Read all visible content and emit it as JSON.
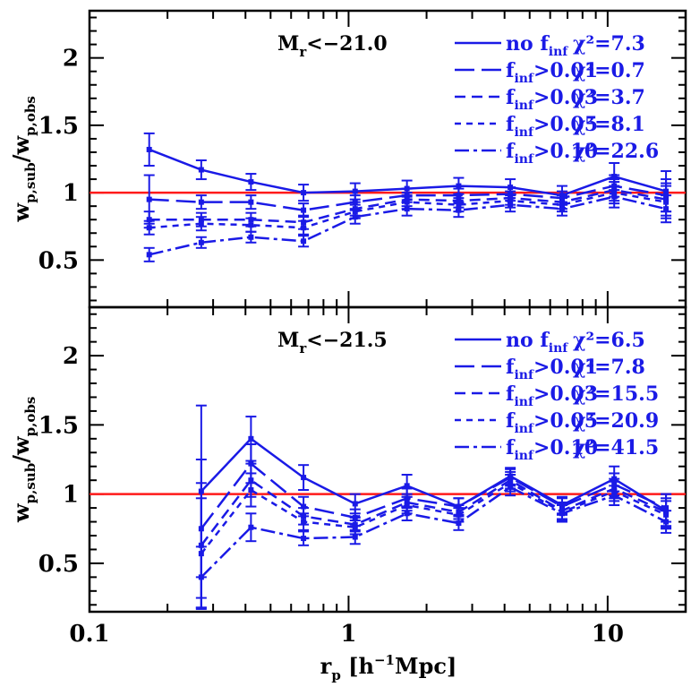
{
  "chart_data": [
    {
      "type": "line",
      "panel_label": "M",
      "panel_label_sub": "r",
      "panel_label_rest": "<−21.0",
      "xlabel": "",
      "ylabel_main": "w",
      "ylabel_sub_num": "p,sub",
      "ylabel_den": "w",
      "ylabel_sub_den": "p,obs",
      "x_scale": "log",
      "xlim": [
        0.1,
        20
      ],
      "ylim": [
        0.15,
        2.35
      ],
      "y_ticks": [
        0.5,
        1,
        1.5,
        2
      ],
      "y_tick_labels": [
        "0.5",
        "1",
        "1.5",
        "2"
      ],
      "reference_line": {
        "y": 1,
        "color": "#ff1a1a"
      },
      "x": [
        0.17,
        0.27,
        0.42,
        0.67,
        1.06,
        1.68,
        2.66,
        4.21,
        6.67,
        10.6,
        16.8
      ],
      "series": [
        {
          "name": "no f_inf",
          "chi2": "χ²=7.3",
          "dash": "solid",
          "values": [
            1.32,
            1.17,
            1.08,
            1.0,
            1.01,
            1.03,
            1.05,
            1.04,
            0.98,
            1.12,
            1.01
          ],
          "err": [
            0.12,
            0.07,
            0.06,
            0.06,
            0.06,
            0.06,
            0.06,
            0.06,
            0.07,
            0.1,
            0.15
          ]
        },
        {
          "name": "f_inf>0.01",
          "chi2": "χ²=0.7",
          "dash": "long",
          "values": [
            0.95,
            0.93,
            0.93,
            0.87,
            0.93,
            0.98,
            0.98,
            0.99,
            0.96,
            1.05,
            0.98
          ],
          "err": [
            0.18,
            0.05,
            0.05,
            0.05,
            0.05,
            0.05,
            0.05,
            0.05,
            0.05,
            0.08,
            0.12
          ]
        },
        {
          "name": "f_inf>0.03",
          "chi2": "χ²=3.7",
          "dash": "medium",
          "values": [
            0.8,
            0.8,
            0.8,
            0.78,
            0.88,
            0.95,
            0.94,
            0.96,
            0.93,
            1.02,
            0.95
          ],
          "err": [
            0.06,
            0.05,
            0.05,
            0.05,
            0.05,
            0.05,
            0.05,
            0.05,
            0.05,
            0.08,
            0.12
          ]
        },
        {
          "name": "f_inf>0.05",
          "chi2": "χ²=8.1",
          "dash": "short",
          "values": [
            0.74,
            0.77,
            0.76,
            0.74,
            0.86,
            0.93,
            0.91,
            0.94,
            0.91,
            1.0,
            0.93
          ],
          "err": [
            0.05,
            0.05,
            0.05,
            0.05,
            0.05,
            0.05,
            0.05,
            0.05,
            0.05,
            0.08,
            0.12
          ]
        },
        {
          "name": "f_inf>0.10",
          "chi2": "χ²=22.6",
          "dash": "dotdash",
          "values": [
            0.54,
            0.63,
            0.67,
            0.64,
            0.82,
            0.88,
            0.87,
            0.91,
            0.88,
            0.97,
            0.88
          ],
          "err": [
            0.05,
            0.04,
            0.04,
            0.04,
            0.05,
            0.05,
            0.05,
            0.05,
            0.05,
            0.08,
            0.1
          ]
        }
      ]
    },
    {
      "type": "line",
      "panel_label": "M",
      "panel_label_sub": "r",
      "panel_label_rest": "<−21.5",
      "x_scale": "log",
      "xlim": [
        0.1,
        20
      ],
      "ylim": [
        0.15,
        2.35
      ],
      "y_ticks": [
        0.5,
        1,
        1.5,
        2
      ],
      "y_tick_labels": [
        "0.5",
        "1",
        "1.5",
        "2"
      ],
      "reference_line": {
        "y": 1,
        "color": "#ff1a1a"
      },
      "x": [
        0.27,
        0.42,
        0.67,
        1.06,
        1.68,
        2.66,
        4.21,
        6.67,
        10.6,
        16.8
      ],
      "series": [
        {
          "name": "no f_inf",
          "chi2": "χ²=6.5",
          "dash": "solid",
          "values": [
            1.02,
            1.4,
            1.12,
            0.93,
            1.06,
            0.91,
            1.13,
            0.92,
            1.11,
            0.88
          ],
          "err": [
            0.62,
            0.16,
            0.09,
            0.07,
            0.08,
            0.06,
            0.06,
            0.06,
            0.09,
            0.12
          ]
        },
        {
          "name": "f_inf>0.01",
          "chi2": "χ²=7.8",
          "dash": "long",
          "values": [
            0.75,
            1.22,
            0.91,
            0.83,
            0.97,
            0.91,
            1.12,
            0.91,
            1.07,
            0.9
          ],
          "err": [
            0.5,
            0.14,
            0.07,
            0.06,
            0.07,
            0.06,
            0.06,
            0.06,
            0.08,
            0.1
          ]
        },
        {
          "name": "f_inf>0.03",
          "chi2": "χ²=15.5",
          "dash": "medium",
          "values": [
            0.63,
            1.1,
            0.84,
            0.78,
            0.94,
            0.87,
            1.1,
            0.88,
            1.04,
            0.87
          ],
          "err": [
            0.45,
            0.12,
            0.06,
            0.05,
            0.06,
            0.05,
            0.06,
            0.06,
            0.07,
            0.1
          ]
        },
        {
          "name": "f_inf>0.05",
          "chi2": "χ²=20.9",
          "dash": "short",
          "values": [
            0.57,
            1.03,
            0.8,
            0.76,
            0.92,
            0.85,
            1.08,
            0.87,
            1.02,
            0.85
          ],
          "err": [
            0.4,
            0.12,
            0.06,
            0.05,
            0.06,
            0.05,
            0.06,
            0.06,
            0.07,
            0.1
          ]
        },
        {
          "name": "f_inf>0.10",
          "chi2": "χ²=41.5",
          "dash": "dotdash",
          "values": [
            0.4,
            0.76,
            0.68,
            0.69,
            0.86,
            0.79,
            1.05,
            0.86,
            0.99,
            0.8
          ],
          "err": [
            0.22,
            0.1,
            0.05,
            0.05,
            0.05,
            0.05,
            0.06,
            0.06,
            0.07,
            0.08
          ]
        }
      ]
    }
  ],
  "x_axis": {
    "ticks": [
      0.1,
      1,
      10
    ],
    "tick_labels": [
      "0.1",
      "1",
      "10"
    ],
    "label_main": "r",
    "label_sub": "p",
    "label_rest": "[h",
    "label_sup": "−1",
    "label_end": "Mpc]"
  },
  "colors": {
    "series": "#1a1ae6",
    "reference": "#ff1a1a",
    "frame": "#000000"
  },
  "legend_placement": "top-right"
}
